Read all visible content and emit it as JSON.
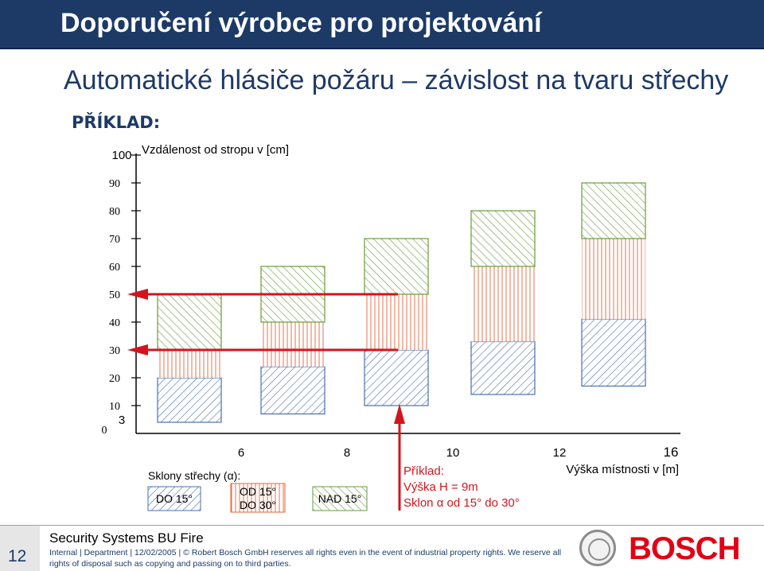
{
  "header": {
    "title": "Doporučení výrobce pro projektování"
  },
  "subtitle": "Automatické hlásiče požáru – závislost na tvaru střechy",
  "example_label": "PŘÍKLAD:",
  "chart_data": {
    "type": "bar",
    "ylabel": "Vzdálenost od stropu v [cm]",
    "xlabel": "Výška místnosti v [m]",
    "y_ticks": [
      "0",
      "10",
      "20",
      "30",
      "40",
      "50",
      "60",
      "70",
      "80",
      "90",
      "100"
    ],
    "x_ticks": [
      "3",
      "6",
      "8",
      "10",
      "12",
      "16"
    ],
    "ylim": [
      0,
      100
    ],
    "categories": [
      "3",
      "6",
      "8",
      "10",
      "12"
    ],
    "series": [
      {
        "name": "DO 15°",
        "style": "blue-diagonal",
        "color": "#4a6fb0",
        "ranges": [
          [
            4,
            20
          ],
          [
            7,
            24
          ],
          [
            10,
            30
          ],
          [
            14,
            33
          ],
          [
            17,
            41
          ]
        ]
      },
      {
        "name": "OD 15° DO 30°",
        "style": "red-vertical",
        "color": "#e4643a",
        "ranges": [
          [
            20,
            30
          ],
          [
            24,
            40
          ],
          [
            30,
            50
          ],
          [
            33,
            60
          ],
          [
            41,
            70
          ]
        ]
      },
      {
        "name": "NAD 15°",
        "style": "green-diagonal",
        "color": "#6a9a3a",
        "ranges": [
          [
            30,
            50
          ],
          [
            40,
            60
          ],
          [
            50,
            70
          ],
          [
            60,
            80
          ],
          [
            70,
            90
          ]
        ]
      }
    ],
    "arrows_y": [
      50,
      30
    ],
    "marker_x": 9,
    "legend": {
      "title": "Sklony střechy (α):",
      "items": [
        "DO 15°",
        "OD 15°",
        "DO 30°",
        "NAD 15°"
      ]
    },
    "example_note": {
      "line1": "Příklad:",
      "line2": "Výška H = 9m",
      "line3": "Sklon α od 15° do 30°"
    },
    "colors": {
      "arrow": "#d4141c",
      "axis": "#000000"
    }
  },
  "footer": {
    "company": "Security Systems BU Fire",
    "slide_number": "12",
    "legal": "Internal | Department | 12/02/2005 | © Robert Bosch GmbH reserves all rights even in the event of industrial property rights. We reserve all rights of disposal such as copying and passing on to third parties.",
    "logo_text": "BOSCH"
  }
}
